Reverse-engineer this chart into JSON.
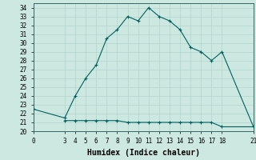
{
  "xlabel": "Humidex (Indice chaleur)",
  "ylabel": "",
  "background_color": "#cce8e0",
  "grid_color": "#b0d4cc",
  "line_color": "#006060",
  "marker": "+",
  "series1_x": [
    0,
    3,
    4,
    5,
    6,
    7,
    8,
    9,
    10,
    11,
    12,
    13,
    14,
    15,
    16,
    17,
    18,
    21
  ],
  "series1_y": [
    22.5,
    21.5,
    24.0,
    26.0,
    27.5,
    30.5,
    31.5,
    33.0,
    32.5,
    34.0,
    33.0,
    32.5,
    31.5,
    29.5,
    29.0,
    28.0,
    29.0,
    20.5
  ],
  "series2_x": [
    3,
    4,
    5,
    6,
    7,
    8,
    9,
    10,
    11,
    12,
    13,
    14,
    15,
    16,
    17,
    18,
    21
  ],
  "series2_y": [
    21.2,
    21.2,
    21.2,
    21.2,
    21.2,
    21.2,
    21.0,
    21.0,
    21.0,
    21.0,
    21.0,
    21.0,
    21.0,
    21.0,
    21.0,
    20.5,
    20.5
  ],
  "xlim": [
    0,
    21
  ],
  "ylim": [
    20,
    34.5
  ],
  "xticks": [
    0,
    3,
    4,
    5,
    6,
    7,
    8,
    9,
    10,
    11,
    12,
    13,
    14,
    15,
    16,
    17,
    18,
    21
  ],
  "yticks": [
    20,
    21,
    22,
    23,
    24,
    25,
    26,
    27,
    28,
    29,
    30,
    31,
    32,
    33,
    34
  ],
  "xlabel_fontsize": 7,
  "tick_fontsize": 5.5
}
